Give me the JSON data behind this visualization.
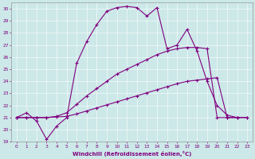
{
  "xlabel": "Windchill (Refroidissement éolien,°C)",
  "bg_color": "#cce8e8",
  "line_color": "#800080",
  "grid_color": "#aacccc",
  "xlim": [
    -0.5,
    23.5
  ],
  "ylim": [
    19,
    30.5
  ],
  "xticks": [
    0,
    1,
    2,
    3,
    4,
    5,
    6,
    7,
    8,
    9,
    10,
    11,
    12,
    13,
    14,
    15,
    16,
    17,
    18,
    19,
    20,
    21,
    22,
    23
  ],
  "yticks": [
    19,
    20,
    21,
    22,
    23,
    24,
    25,
    26,
    27,
    28,
    29,
    30
  ],
  "series": [
    {
      "x": [
        0,
        1,
        2,
        3,
        4,
        5,
        6,
        7,
        8,
        9,
        10,
        11,
        12,
        13,
        14,
        15,
        16,
        17,
        18,
        19,
        20,
        21,
        22
      ],
      "y": [
        21.0,
        21.4,
        20.7,
        19.2,
        20.3,
        21.0,
        25.5,
        27.3,
        28.7,
        29.8,
        30.1,
        30.2,
        30.1,
        29.4,
        30.1,
        26.7,
        27.0,
        28.3,
        26.5,
        24.0,
        22.0,
        21.2,
        21.0
      ]
    },
    {
      "x": [
        0,
        1,
        2,
        3,
        4,
        5,
        6,
        7,
        8,
        9,
        10,
        11,
        12,
        13,
        14,
        15,
        16,
        17,
        18,
        19,
        20,
        21,
        22,
        23
      ],
      "y": [
        21.0,
        21.0,
        21.0,
        21.0,
        21.05,
        21.1,
        21.3,
        21.55,
        21.8,
        22.05,
        22.3,
        22.55,
        22.8,
        23.05,
        23.3,
        23.55,
        23.8,
        24.0,
        24.1,
        24.2,
        24.3,
        21.0,
        21.0,
        21.0
      ]
    },
    {
      "x": [
        0,
        1,
        2,
        3,
        4,
        5,
        6,
        7,
        8,
        9,
        10,
        11,
        12,
        13,
        14,
        15,
        16,
        17,
        18,
        19,
        20,
        21,
        22,
        23
      ],
      "y": [
        21.0,
        21.0,
        21.0,
        21.0,
        21.1,
        21.4,
        22.1,
        22.8,
        23.4,
        24.0,
        24.6,
        25.0,
        25.4,
        25.8,
        26.2,
        26.5,
        26.7,
        26.8,
        26.8,
        26.7,
        21.0,
        21.0,
        21.0,
        21.0
      ]
    }
  ]
}
